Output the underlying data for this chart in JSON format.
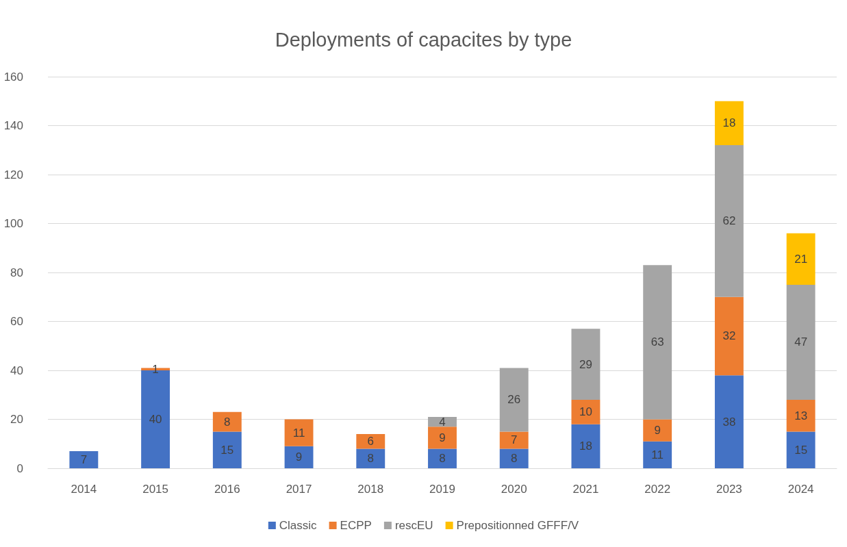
{
  "chart_data": {
    "type": "bar",
    "title": "Deployments of capacites by type",
    "stacked": true,
    "data_labels": true,
    "grid": "y",
    "legend": "bottom",
    "categories": [
      "2014",
      "2015",
      "2016",
      "2017",
      "2018",
      "2019",
      "2020",
      "2021",
      "2022",
      "2023",
      "2024"
    ],
    "ylim": [
      0,
      160
    ],
    "yticks": [
      0,
      20,
      40,
      60,
      80,
      100,
      120,
      140,
      160
    ],
    "series": [
      {
        "name": "Classic",
        "color": "#4472c4",
        "values": [
          7,
          40,
          15,
          9,
          8,
          8,
          8,
          18,
          11,
          38,
          15
        ]
      },
      {
        "name": "ECPP",
        "color": "#ed7d31",
        "values": [
          null,
          1,
          8,
          11,
          6,
          9,
          7,
          10,
          9,
          32,
          13
        ]
      },
      {
        "name": "rescEU",
        "color": "#a5a5a5",
        "values": [
          null,
          null,
          null,
          null,
          null,
          4,
          26,
          29,
          63,
          62,
          47
        ]
      },
      {
        "name": "Prepositionned GFFF/V",
        "color": "#ffc000",
        "values": [
          null,
          null,
          null,
          null,
          null,
          null,
          null,
          null,
          null,
          18,
          21
        ]
      }
    ]
  }
}
